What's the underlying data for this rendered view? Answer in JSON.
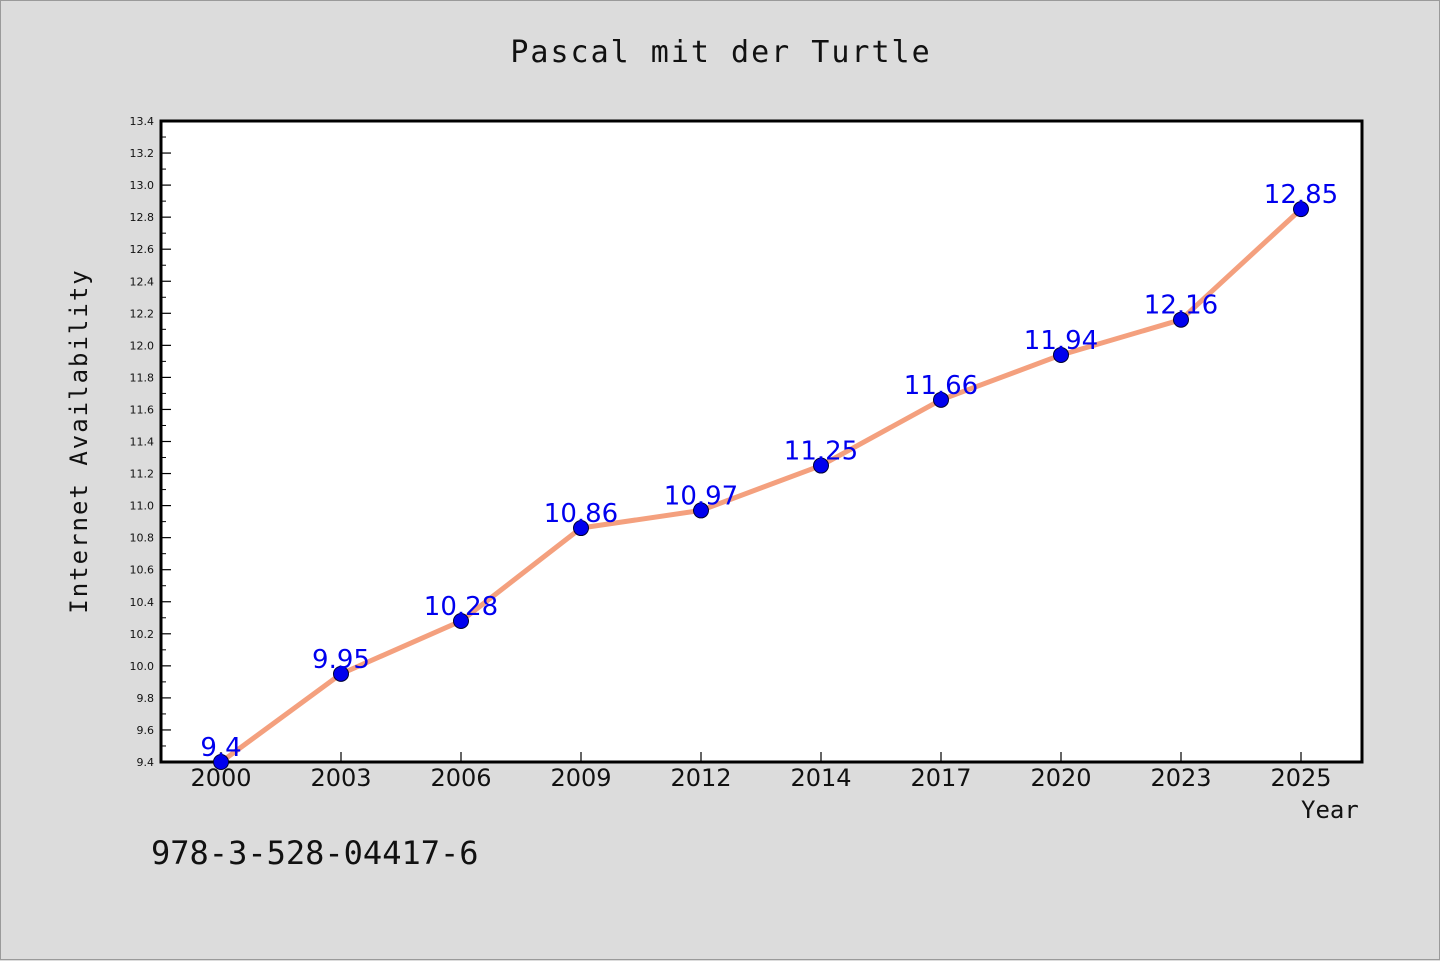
{
  "page": {
    "title": "Pascal mit der Turtle",
    "footer_text": "978-3-528-04417-6"
  },
  "chart_data": {
    "type": "line",
    "title": "Pascal mit der Turtle",
    "xlabel": "Year",
    "ylabel": "Internet Availability",
    "categories": [
      "2000",
      "2003",
      "2006",
      "2009",
      "2012",
      "2014",
      "2017",
      "2020",
      "2023",
      "2025"
    ],
    "series": [
      {
        "values": [
          9.4,
          9.95,
          10.28,
          10.86,
          10.97,
          11.25,
          11.66,
          11.94,
          12.16,
          12.85
        ],
        "labels": [
          "9.4",
          "9.95",
          "10.28",
          "10.86",
          "10.97",
          "11.25",
          "11.66",
          "11.94",
          "12.16",
          "12.85"
        ]
      }
    ],
    "ylim": [
      9.4,
      13.4
    ],
    "yticks": [
      "9.4",
      "9.6",
      "9.8",
      "10.0",
      "10.2",
      "10.4",
      "10.6",
      "10.8",
      "11.0",
      "11.2",
      "11.4",
      "11.6",
      "11.8",
      "12.0",
      "12.2",
      "12.4",
      "12.6",
      "12.8",
      "13.0",
      "13.2",
      "13.4"
    ],
    "grid": false,
    "legend": "none",
    "colors": {
      "line": "#f4a07e",
      "marker": "#0000ee",
      "label": "#0000ee",
      "background": "#dcdcdc",
      "plot_area": "#ffffff"
    }
  }
}
